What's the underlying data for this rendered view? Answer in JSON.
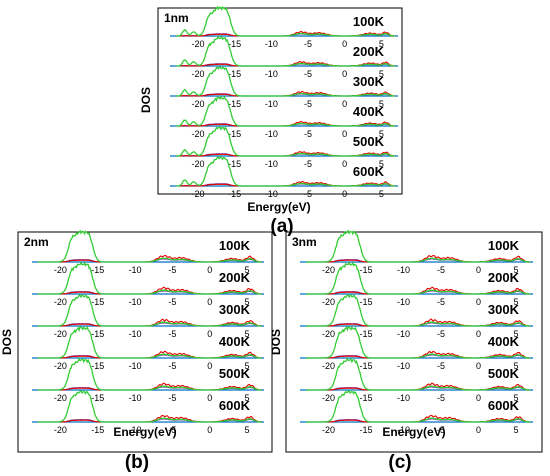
{
  "chart_data": [
    {
      "type": "line",
      "panel_label": "1nm",
      "caption": "(a)",
      "xlabel": "Energy(eV)",
      "ylabel": "DOS",
      "xlim": [
        -23,
        7
      ],
      "xticks": [
        "-20",
        "-15",
        "-10",
        "-5",
        "0",
        "5"
      ],
      "temperatures": [
        "100K",
        "200K",
        "300K",
        "400K",
        "500K",
        "600K"
      ],
      "series_colors": {
        "total": "#33cc33",
        "s": "#e60000",
        "p": "#7030a0",
        "baseline": "#0070c0"
      },
      "peaks": [
        {
          "e": -17.3,
          "h": 1.0,
          "w": 0.9
        },
        {
          "e": -16.0,
          "h": 0.55,
          "w": 0.5
        },
        {
          "e": -18.6,
          "h": 0.35,
          "w": 0.4
        },
        {
          "e": -21.8,
          "h": 0.22,
          "w": 0.3
        },
        {
          "e": -20.6,
          "h": 0.15,
          "w": 0.3
        },
        {
          "e": -6.0,
          "h": 0.25,
          "w": 0.8
        },
        {
          "e": -3.5,
          "h": 0.2,
          "w": 1.0
        },
        {
          "e": 3.5,
          "h": 0.18,
          "w": 1.0
        },
        {
          "e": 5.6,
          "h": 0.22,
          "w": 0.4
        }
      ]
    },
    {
      "type": "line",
      "panel_label": "2nm",
      "caption": "(b)",
      "xlabel": "Energy(eV)",
      "ylabel": "DOS",
      "xlim": [
        -23,
        7
      ],
      "xticks": [
        "-20",
        "-15",
        "-10",
        "-5",
        "0",
        "5"
      ],
      "temperatures": [
        "100K",
        "200K",
        "300K",
        "400K",
        "500K",
        "600K"
      ],
      "series_colors": {
        "total": "#33cc33",
        "s": "#e60000",
        "p": "#7030a0",
        "baseline": "#0070c0"
      },
      "peaks": [
        {
          "e": -17.4,
          "h": 1.0,
          "w": 0.9
        },
        {
          "e": -16.1,
          "h": 0.55,
          "w": 0.5
        },
        {
          "e": -18.6,
          "h": 0.35,
          "w": 0.4
        },
        {
          "e": -6.2,
          "h": 0.35,
          "w": 0.8
        },
        {
          "e": -3.8,
          "h": 0.25,
          "w": 1.0
        },
        {
          "e": 3.0,
          "h": 0.2,
          "w": 1.0
        },
        {
          "e": 5.4,
          "h": 0.3,
          "w": 0.5
        }
      ]
    },
    {
      "type": "line",
      "panel_label": "3nm",
      "caption": "(c)",
      "xlabel": "Energy(eV)",
      "ylabel": "DOS",
      "xlim": [
        -23,
        7
      ],
      "xticks": [
        "-20",
        "-15",
        "-10",
        "-5",
        "0",
        "5"
      ],
      "temperatures": [
        "100K",
        "200K",
        "300K",
        "400K",
        "500K",
        "600K"
      ],
      "series_colors": {
        "total": "#33cc33",
        "s": "#e60000",
        "p": "#7030a0",
        "baseline": "#0070c0"
      },
      "peaks": [
        {
          "e": -17.5,
          "h": 1.0,
          "w": 0.9
        },
        {
          "e": -16.2,
          "h": 0.55,
          "w": 0.5
        },
        {
          "e": -18.7,
          "h": 0.35,
          "w": 0.4
        },
        {
          "e": -6.3,
          "h": 0.35,
          "w": 0.8
        },
        {
          "e": -3.9,
          "h": 0.25,
          "w": 1.0
        },
        {
          "e": 2.8,
          "h": 0.2,
          "w": 1.0
        },
        {
          "e": 5.3,
          "h": 0.3,
          "w": 0.5
        }
      ]
    }
  ]
}
